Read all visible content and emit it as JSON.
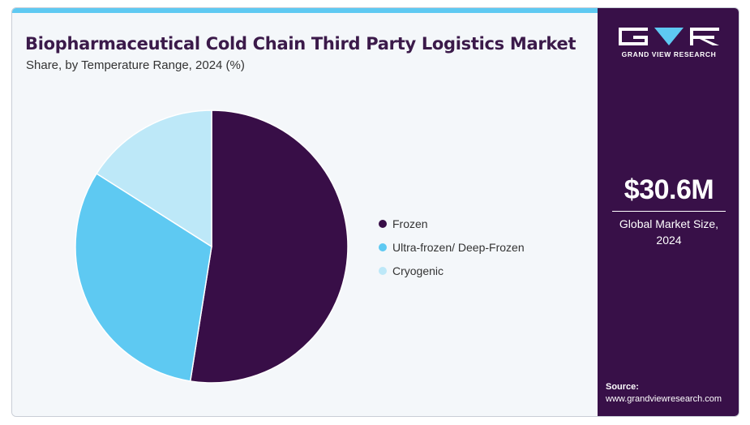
{
  "header": {
    "title": "Biopharmaceutical Cold Chain Third Party Logistics Market",
    "subtitle": "Share, by Temperature Range, 2024 (%)"
  },
  "chart_data": {
    "type": "pie",
    "categories": [
      "Frozen",
      "Ultra-frozen/ Deep-Frozen",
      "Cryogenic"
    ],
    "values": [
      52.5,
      31.5,
      16.0
    ],
    "colors": [
      "#380e47",
      "#5ec9f2",
      "#bde8f8"
    ],
    "legend_position": "right"
  },
  "sidebar": {
    "logo_text": "GRAND VIEW RESEARCH",
    "market_value": "$30.6M",
    "market_caption_line1": "Global Market Size,",
    "market_caption_line2": "2024",
    "source_label": "Source:",
    "source_url": "www.grandviewresearch.com"
  },
  "colors": {
    "accent": "#5ec9f2",
    "panel": "#381048",
    "title": "#3b1a4a"
  }
}
